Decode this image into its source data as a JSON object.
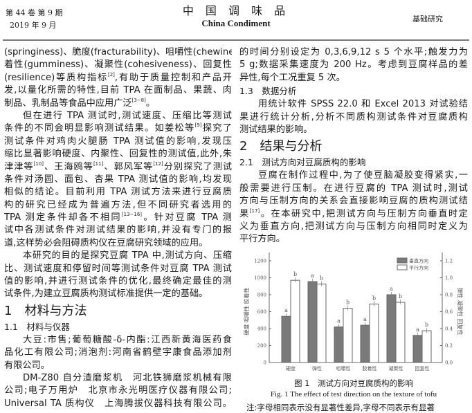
{
  "header": {
    "volume": "第 44 卷 第 9 期",
    "date": "2019 年 9 月",
    "journal_cn": "中 国 调 味 品",
    "journal_en": "China Condiment",
    "section": "基础研究"
  },
  "left_column": [
    {
      "type": "para",
      "indent": false,
      "lines": [
        "(springiness)、脆度(fracturability)、咀嚼性(chewiness)、胶",
        "着性(gumminess)、凝聚性(cohesiveness)、回复性",
        [
          "(resilience)等质构指标",
          {
            "sup": "[2]"
          },
          ",有助于质量控制和产品开"
        ],
        "发,以量化所需的特性,目前 TPA 在面制品、果蔬、肉",
        [
          "制品、乳制品等食品中应用广泛",
          {
            "sup": "[3−8]"
          },
          "。"
        ]
      ]
    },
    {
      "type": "para",
      "indent": true,
      "lines": [
        "但在进行 TPA 测试时,测试速度、压缩比等测试",
        [
          "条件的不同会明显影响测试结果。如姜松等",
          {
            "sup": "[9]"
          },
          "探究了"
        ],
        "测试条件对鸡肉火腿肠 TPA 测试值的影响,发现压",
        "缩比显著影响硬度、内聚性、回复性的测试值,此外,朱",
        [
          "津津等",
          {
            "sup": "[10]"
          },
          "、王海鸥等",
          {
            "sup": "[11]"
          },
          "、郭风军等",
          {
            "sup": "[12]"
          },
          "分别探究了测试"
        ],
        "条件对汤圆、面包、杏果 TPA 测试值的影响,均发现",
        "相似的结论。目前利用 TPA 测试方法来进行豆腐质",
        "构的研究已经成为普遍方法,但不同研究者选用的",
        [
          "TPA 测定条件却各不相同",
          {
            "sup": "[13−16]"
          },
          "。针对豆腐 TPA 测"
        ],
        "试中各测试条件对测试结果的影响,并没有专门的报",
        "道,这样势必会阻碍质构仪在豆腐研究领域的应用。"
      ]
    },
    {
      "type": "para",
      "indent": true,
      "lines": [
        "本研究的目的是探究豆腐 TPA 中,测试方向、压缩",
        "比、测试速度和停留时间等测试条件对豆腐 TPA 测试",
        "值的影响,并进行测试条件的优化,最终确定最佳的测",
        "试条件,为建立豆腐质构测试标准提供一定的基础。"
      ]
    },
    {
      "type": "h1",
      "text": "1　材料与方法"
    },
    {
      "type": "h2",
      "text": "1.1　材料与仪器"
    },
    {
      "type": "para",
      "indent": true,
      "lines": [
        "大豆:市售;葡萄糖酸-δ-内酯:江西新黄海医药食",
        "品化工有限公司;消泡剂:河南省鹤壁宇康食品添加剂",
        "有限公司。"
      ]
    },
    {
      "type": "para",
      "indent": true,
      "full_last": true,
      "lines": [
        "DM-Z80 自分渣磨浆机　河北铁狮磨浆机械有限",
        "公司;电子万用炉　北京市永光明医疗仪器有限公司;",
        "Universal TA 质构仪　上海腾拔仪器科技有限公司。"
      ]
    }
  ],
  "right_column": [
    {
      "type": "para",
      "indent": false,
      "lines": [
        "的时间分别设定为 0,3,6,9,12 s 5 个水平;触发力为",
        "5 g;数据采集速度为 200 Hz。考虑到豆腐样品的差",
        "异性,每个工况重复 5 次。"
      ]
    },
    {
      "type": "h2",
      "text": "1.3　数据分析"
    },
    {
      "type": "para",
      "indent": true,
      "lines": [
        "用统计软件 SPSS 22.0 和 Excel 2013 对试验结",
        "果进行统计分析,分析不同质构测试条件对豆腐质构",
        "测试结果的影响。"
      ]
    },
    {
      "type": "h1",
      "text": "2　结果与分析"
    },
    {
      "type": "h2",
      "text": "2.1　测试方向对豆腐质构的影响"
    },
    {
      "type": "para",
      "indent": true,
      "lines": [
        "豆腐在制作过程中,为了使豆脑凝胶变得紧实,一",
        "般需要进行压制。在进行豆腐的 TPA 测试时,测试",
        "方向与压制方向的关系会直接影响豆腐的质构测试结",
        [
          "果",
          {
            "sup": "[17]"
          },
          "。在本研究中,把测试方向与压制方向垂直时定"
        ],
        "义为垂直方向,把测试方向与压制方向相同时定义为",
        "平行方向。"
      ]
    }
  ],
  "chart_data": {
    "type": "bar",
    "categories": [
      "硬度",
      "弹性",
      "咀嚼性",
      "胶着性",
      "凝聚性",
      "回复性"
    ],
    "axis_of_category": [
      "left",
      "right",
      "left",
      "left",
      "right",
      "right"
    ],
    "series": [
      {
        "name": "垂直方向",
        "color": "#7a7a7a",
        "values": [
          545,
          0.955,
          420,
          440,
          0.8,
          0.32
        ],
        "letters": [
          "a",
          "a",
          "a",
          "a",
          "a",
          "a"
        ]
      },
      {
        "name": "平行方向",
        "color": "#ffffff",
        "values": [
          970,
          0.925,
          640,
          690,
          0.71,
          0.375
        ],
        "letters": [
          "b",
          "b",
          "b",
          "b",
          "b",
          "b"
        ]
      }
    ],
    "ylabel_left": "硬度 咀嚼性 胶着性",
    "ylabel_right": "弹性 凝聚性 回复性",
    "ylim_left": [
      0,
      1200
    ],
    "ylim_right": [
      0,
      1.2
    ],
    "yticks_left": [
      "0",
      "200",
      "400",
      "600",
      "800",
      "1000",
      "1200"
    ],
    "yticks_right": [
      "0.0",
      "0.2",
      "0.4",
      "0.6",
      "0.8",
      "1.0",
      "1.2"
    ],
    "legend": "top-right",
    "grid": false
  },
  "figure": {
    "caption_cn": "图 1　测试方向对豆腐质构的影响",
    "caption_en": "Fig. 1 The effect of test direction on the texture of tofu",
    "note": "注:字母相同表示没有显著性差异,字母不同表示有显著"
  }
}
